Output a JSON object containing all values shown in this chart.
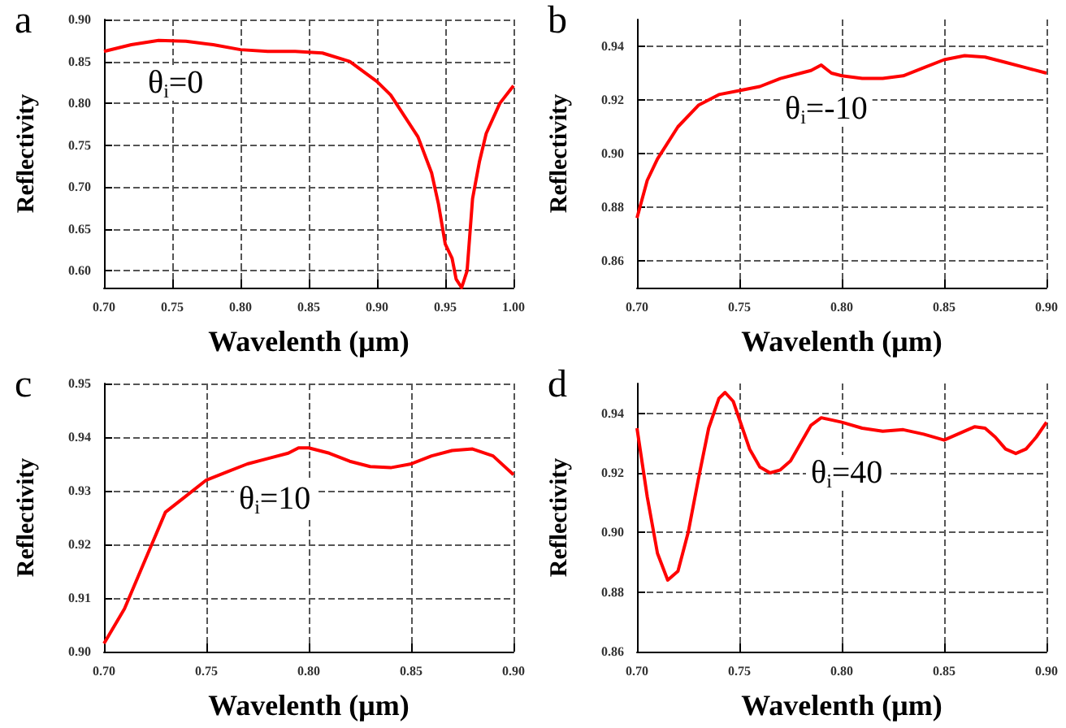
{
  "chart_data": [
    {
      "type": "line",
      "title": "a",
      "xlabel": "Wavelenth (μm)",
      "ylabel": "Reflectivity",
      "xlim": [
        0.7,
        1.0
      ],
      "ylim": [
        0.58,
        0.9
      ],
      "xticks": [
        {
          "value": 0.7,
          "label": "0.70"
        },
        {
          "value": 0.75,
          "label": "0.75"
        },
        {
          "value": 0.8,
          "label": "0.80"
        },
        {
          "value": 0.85,
          "label": "0.85"
        },
        {
          "value": 0.9,
          "label": "0.90"
        },
        {
          "value": 0.95,
          "label": "0.95"
        },
        {
          "value": 1.0,
          "label": "1.00"
        }
      ],
      "yticks": [
        {
          "value": 0.6,
          "label": "0.60"
        },
        {
          "value": 0.65,
          "label": "0.65"
        },
        {
          "value": 0.7,
          "label": "0.70"
        },
        {
          "value": 0.75,
          "label": "0.75"
        },
        {
          "value": 0.8,
          "label": "0.80"
        },
        {
          "value": 0.85,
          "label": "0.85"
        },
        {
          "value": 0.9,
          "label": "0.90"
        }
      ],
      "grid": true,
      "marker": "none",
      "annotations": [
        "θ$_{i}$=0"
      ],
      "x": [
        0.7,
        0.72,
        0.74,
        0.76,
        0.78,
        0.8,
        0.82,
        0.84,
        0.86,
        0.88,
        0.9,
        0.91,
        0.92,
        0.93,
        0.94,
        0.945,
        0.95,
        0.955,
        0.958,
        0.962,
        0.966,
        0.97,
        0.975,
        0.98,
        0.99,
        1.0
      ],
      "series": [
        {
          "color": "#ff0000",
          "values": [
            0.862,
            0.87,
            0.875,
            0.874,
            0.87,
            0.864,
            0.862,
            0.862,
            0.86,
            0.85,
            0.826,
            0.81,
            0.785,
            0.76,
            0.717,
            0.68,
            0.632,
            0.615,
            0.59,
            0.58,
            0.6,
            0.686,
            0.73,
            0.764,
            0.8,
            0.821
          ]
        }
      ]
    },
    {
      "type": "line",
      "title": "b",
      "xlabel": "Wavelenth (μm)",
      "ylabel": "Reflectivity",
      "xlim": [
        0.7,
        0.9
      ],
      "ylim": [
        0.85,
        0.95
      ],
      "xticks": [
        {
          "value": 0.7,
          "label": "0.70"
        },
        {
          "value": 0.75,
          "label": "0.75"
        },
        {
          "value": 0.8,
          "label": "0.80"
        },
        {
          "value": 0.85,
          "label": "0.85"
        },
        {
          "value": 0.9,
          "label": "0.90"
        }
      ],
      "yticks": [
        0.86,
        0.88,
        {
          "value": 0.9,
          "label": "0.90"
        },
        0.92,
        0.94
      ],
      "grid": true,
      "marker": "none",
      "annotations": [
        "θ$_{i}$=-10"
      ],
      "x": [
        0.7,
        0.705,
        0.71,
        0.72,
        0.73,
        0.74,
        0.75,
        0.76,
        0.77,
        0.78,
        0.785,
        0.79,
        0.795,
        0.8,
        0.81,
        0.82,
        0.83,
        0.84,
        0.85,
        0.86,
        0.87,
        0.88,
        0.89,
        0.9
      ],
      "series": [
        {
          "color": "#ff0000",
          "values": [
            0.876,
            0.89,
            0.898,
            0.91,
            0.918,
            0.922,
            0.9235,
            0.925,
            0.928,
            0.93,
            0.931,
            0.933,
            0.93,
            0.929,
            0.928,
            0.928,
            0.929,
            0.932,
            0.935,
            0.9365,
            0.936,
            0.934,
            0.932,
            0.93
          ]
        }
      ]
    },
    {
      "type": "line",
      "title": "c",
      "xlabel": "Wavelenth (μm)",
      "ylabel": "Reflectivity",
      "xlim": [
        0.7,
        0.9
      ],
      "ylim": [
        0.9,
        0.95
      ],
      "xticks": [
        {
          "value": 0.7,
          "label": "0.70"
        },
        {
          "value": 0.75,
          "label": "0.75"
        },
        {
          "value": 0.8,
          "label": "0.80"
        },
        {
          "value": 0.85,
          "label": "0.85"
        },
        {
          "value": 0.9,
          "label": "0.90"
        }
      ],
      "yticks": [
        {
          "value": 0.9,
          "label": "0.90"
        },
        0.91,
        0.92,
        0.93,
        0.94,
        0.95
      ],
      "grid": true,
      "marker": "none",
      "annotations": [
        "θ$_{i}$=10"
      ],
      "x": [
        0.7,
        0.71,
        0.72,
        0.73,
        0.74,
        0.75,
        0.76,
        0.77,
        0.78,
        0.79,
        0.795,
        0.8,
        0.81,
        0.82,
        0.83,
        0.84,
        0.85,
        0.86,
        0.87,
        0.88,
        0.89,
        0.9
      ],
      "series": [
        {
          "color": "#ff0000",
          "values": [
            0.9015,
            0.908,
            0.917,
            0.926,
            0.929,
            0.932,
            0.9335,
            0.935,
            0.936,
            0.937,
            0.938,
            0.938,
            0.937,
            0.9355,
            0.9345,
            0.9343,
            0.935,
            0.9365,
            0.9375,
            0.9378,
            0.9365,
            0.933
          ]
        }
      ]
    },
    {
      "type": "line",
      "title": "d",
      "xlabel": "Wavelenth (μm)",
      "ylabel": "Reflectivity",
      "xlim": [
        0.7,
        0.9
      ],
      "ylim": [
        0.86,
        0.95
      ],
      "xticks": [
        {
          "value": 0.7,
          "label": "0.70"
        },
        {
          "value": 0.75,
          "label": "0.75"
        },
        {
          "value": 0.8,
          "label": "0.80"
        },
        {
          "value": 0.85,
          "label": "0.85"
        },
        {
          "value": 0.9,
          "label": "0.90"
        }
      ],
      "yticks": [
        0.86,
        0.88,
        {
          "value": 0.9,
          "label": "0.90"
        },
        0.92,
        0.94
      ],
      "grid": true,
      "marker": "none",
      "annotations": [
        "θ$_{i}$=40"
      ],
      "x": [
        0.7,
        0.705,
        0.71,
        0.715,
        0.72,
        0.725,
        0.73,
        0.735,
        0.74,
        0.743,
        0.747,
        0.75,
        0.755,
        0.76,
        0.765,
        0.77,
        0.775,
        0.78,
        0.785,
        0.79,
        0.8,
        0.81,
        0.82,
        0.83,
        0.84,
        0.85,
        0.86,
        0.865,
        0.87,
        0.875,
        0.88,
        0.885,
        0.89,
        0.895,
        0.9
      ],
      "series": [
        {
          "color": "#ff0000",
          "values": [
            0.935,
            0.912,
            0.893,
            0.884,
            0.887,
            0.9,
            0.918,
            0.935,
            0.945,
            0.947,
            0.944,
            0.938,
            0.928,
            0.922,
            0.92,
            0.921,
            0.924,
            0.93,
            0.936,
            0.9385,
            0.937,
            0.935,
            0.934,
            0.9345,
            0.933,
            0.931,
            0.934,
            0.9355,
            0.935,
            0.932,
            0.928,
            0.9265,
            0.928,
            0.932,
            0.937
          ]
        }
      ]
    }
  ]
}
